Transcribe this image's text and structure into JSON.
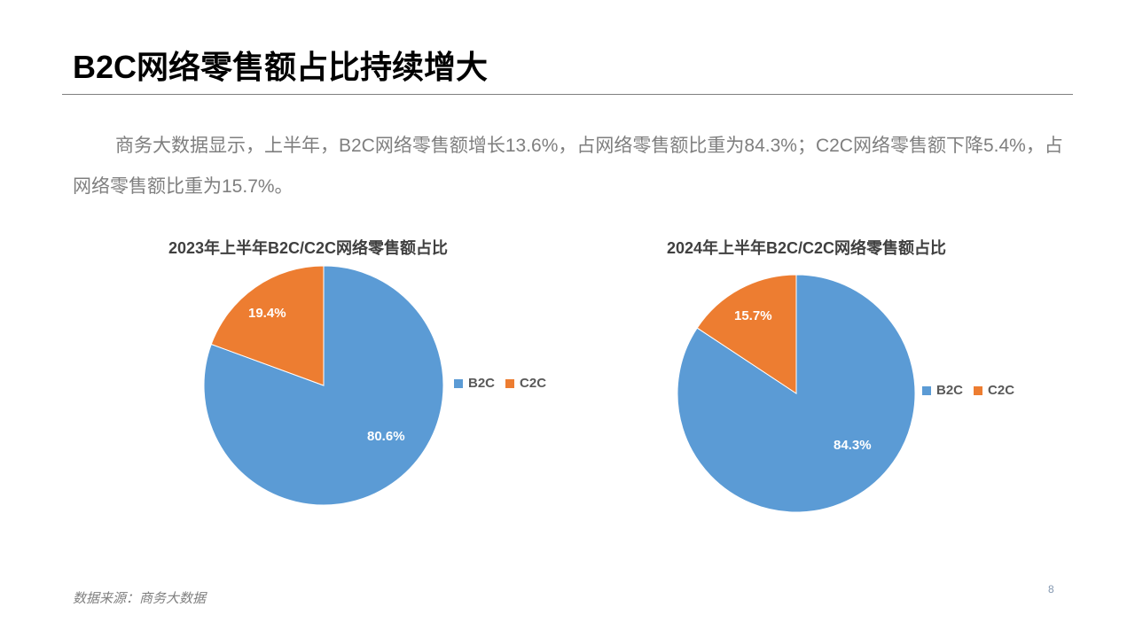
{
  "slide": {
    "title": "B2C网络零售额占比持续增大",
    "paragraph": "商务大数据显示，上半年，B2C网络零售额增长13.6%，占网络零售额比重为84.3%；C2C网络零售额下降5.4%，占网络零售额比重为15.7%。",
    "source": "数据来源：商务大数据",
    "page_number": "8"
  },
  "colors": {
    "B2C": "#5b9bd5",
    "C2C": "#ed7d31"
  },
  "charts": [
    {
      "title": "2023年上半年B2C/C2C网络零售额占比",
      "labels": {
        "B2C": "80.6%",
        "C2C": "19.4%"
      },
      "legend": [
        "B2C",
        "C2C"
      ]
    },
    {
      "title": "2024年上半年B2C/C2C网络零售额占比",
      "labels": {
        "B2C": "84.3%",
        "C2C": "15.7%"
      },
      "legend": [
        "B2C",
        "C2C"
      ]
    }
  ],
  "chart_data": [
    {
      "type": "pie",
      "title": "2023年上半年B2C/C2C网络零售额占比",
      "categories": [
        "B2C",
        "C2C"
      ],
      "values": [
        80.6,
        19.4
      ],
      "unit": "%",
      "colors": [
        "#5b9bd5",
        "#ed7d31"
      ],
      "legend_position": "right",
      "data_labels": [
        "80.6%",
        "19.4%"
      ]
    },
    {
      "type": "pie",
      "title": "2024年上半年B2C/C2C网络零售额占比",
      "categories": [
        "B2C",
        "C2C"
      ],
      "values": [
        84.3,
        15.7
      ],
      "unit": "%",
      "colors": [
        "#5b9bd5",
        "#ed7d31"
      ],
      "legend_position": "right",
      "data_labels": [
        "84.3%",
        "15.7%"
      ]
    }
  ]
}
